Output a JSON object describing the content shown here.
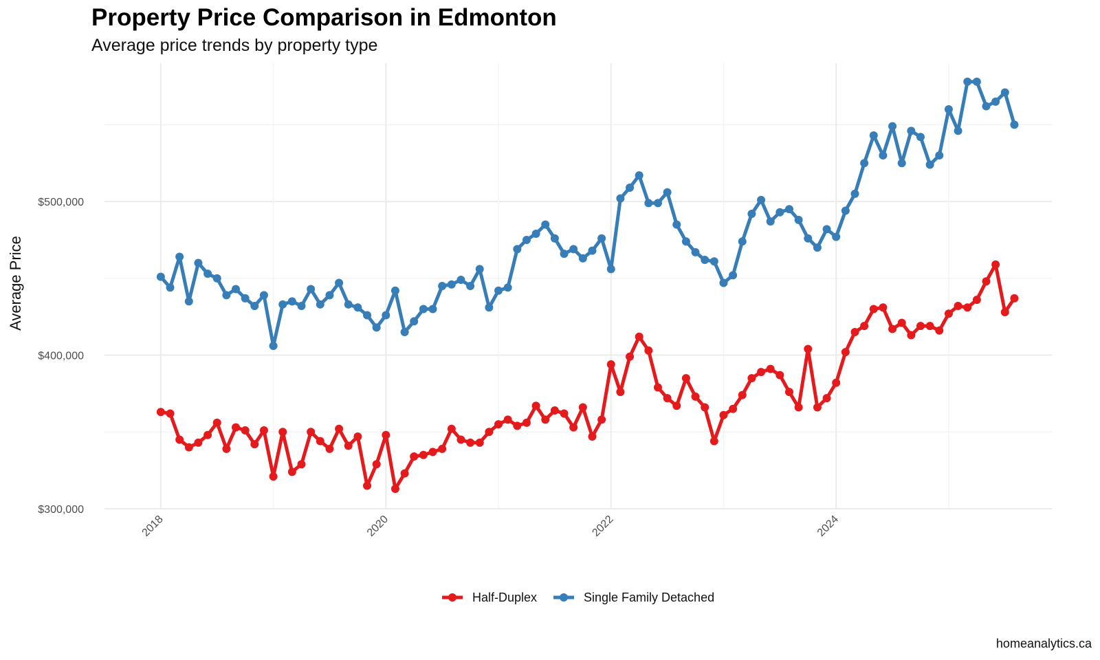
{
  "title": "Property Price Comparison in Edmonton",
  "subtitle": "Average price trends by property type",
  "caption": "homeanalytics.ca",
  "colors": {
    "Half-Duplex": "#e41a1c",
    "Single Family Detached": "#377eb8"
  },
  "chart_data": {
    "type": "line",
    "title": "Property Price Comparison in Edmonton",
    "subtitle": "Average price trends by property type",
    "xlabel": "",
    "ylabel": "Average Price",
    "x_start": "2018-01",
    "x_interval": "monthly",
    "xlim": [
      "2017-07",
      "2025-12"
    ],
    "ylim": [
      300000,
      590000
    ],
    "x_ticks": [
      "2018",
      "2020",
      "2022",
      "2024"
    ],
    "y_ticks": [
      "$300,000",
      "$400,000",
      "$500,000"
    ],
    "grid": true,
    "legend_position": "bottom",
    "series": [
      {
        "name": "Half-Duplex",
        "values": [
          363000,
          362000,
          345000,
          340000,
          343000,
          348000,
          356000,
          339000,
          353000,
          351000,
          342000,
          351000,
          321000,
          350000,
          324000,
          329000,
          350000,
          344000,
          339000,
          352000,
          341000,
          347000,
          315000,
          329000,
          348000,
          313000,
          323000,
          334000,
          335000,
          337000,
          339000,
          352000,
          345000,
          343000,
          343000,
          350000,
          355000,
          358000,
          354000,
          356000,
          367000,
          358000,
          364000,
          362000,
          353000,
          366000,
          347000,
          358000,
          394000,
          376000,
          399000,
          412000,
          403000,
          379000,
          372000,
          367000,
          385000,
          373000,
          366000,
          344000,
          361000,
          365000,
          374000,
          385000,
          389000,
          391000,
          387000,
          376000,
          366000,
          404000,
          366000,
          372000,
          382000,
          402000,
          415000,
          419000,
          430000,
          431000,
          417000,
          421000,
          413000,
          419000,
          419000,
          416000,
          427000,
          432000,
          431000,
          436000,
          448000,
          459000,
          428000,
          437000
        ]
      },
      {
        "name": "Single Family Detached",
        "values": [
          451000,
          444000,
          464000,
          435000,
          460000,
          453000,
          450000,
          439000,
          443000,
          437000,
          432000,
          439000,
          406000,
          433000,
          435000,
          432000,
          443000,
          433000,
          439000,
          447000,
          433000,
          431000,
          426000,
          418000,
          426000,
          442000,
          415000,
          422000,
          430000,
          430000,
          445000,
          446000,
          449000,
          445000,
          456000,
          431000,
          442000,
          444000,
          469000,
          475000,
          479000,
          485000,
          476000,
          466000,
          469000,
          463000,
          468000,
          476000,
          456000,
          502000,
          509000,
          517000,
          499000,
          499000,
          506000,
          485000,
          474000,
          467000,
          462000,
          461000,
          447000,
          452000,
          474000,
          492000,
          501000,
          487000,
          493000,
          495000,
          488000,
          476000,
          470000,
          482000,
          477000,
          494000,
          505000,
          525000,
          543000,
          530000,
          549000,
          525000,
          546000,
          542000,
          524000,
          530000,
          560000,
          546000,
          578000,
          578000,
          562000,
          565000,
          571000,
          550000
        ]
      }
    ]
  }
}
